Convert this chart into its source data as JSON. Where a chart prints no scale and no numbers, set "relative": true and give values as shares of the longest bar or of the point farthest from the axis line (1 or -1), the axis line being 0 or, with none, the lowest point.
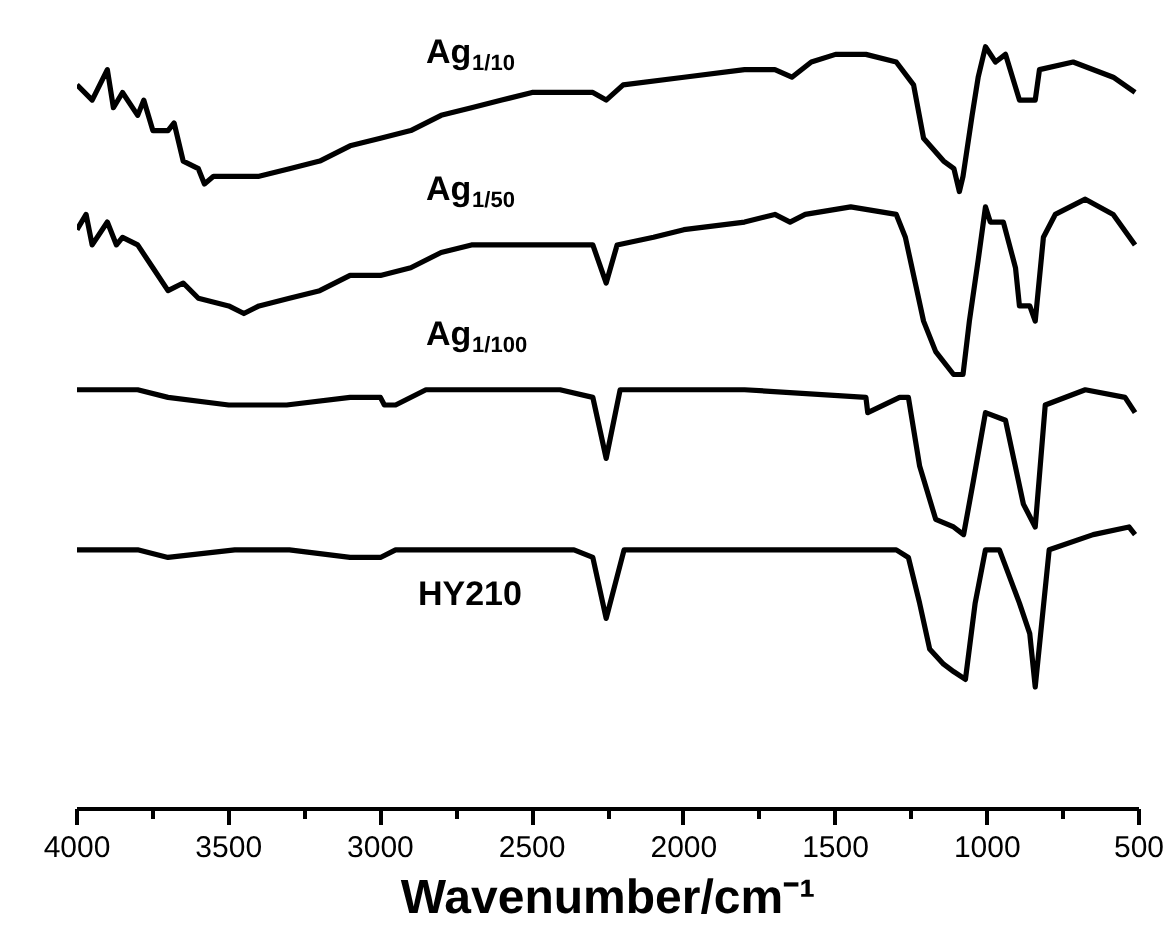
{
  "chart_data": {
    "type": "line",
    "relative": true,
    "xlabel": "Wavenumber/cm⁻¹",
    "xlim": [
      4000,
      500
    ],
    "xticks": [
      4000,
      {
        "value": 3750,
        "label": null
      },
      3500,
      {
        "value": 3250,
        "label": null
      },
      3000,
      {
        "value": 2750,
        "label": null
      },
      2500,
      {
        "value": 2250,
        "label": null
      },
      2000,
      {
        "value": 1750,
        "label": null
      },
      1500,
      {
        "value": 1250,
        "label": null
      },
      1000,
      {
        "value": 750,
        "label": null
      },
      500
    ],
    "grid": false,
    "marker": "none",
    "line_style": "solid",
    "series": [
      {
        "name": "Ag$_{1/10}$",
        "color": "#000000",
        "x": [
          4000,
          3950,
          3900,
          3880,
          3850,
          3800,
          3780,
          3750,
          3700,
          3680,
          3650,
          3600,
          3580,
          3550,
          3500,
          3450,
          3400,
          3300,
          3200,
          3100,
          3000,
          2900,
          2800,
          2700,
          2600,
          2500,
          2400,
          2300,
          2256,
          2200,
          2000,
          1800,
          1700,
          1644,
          1580,
          1500,
          1400,
          1300,
          1243,
          1210,
          1144,
          1110,
          1092,
          1080,
          1050,
          1030,
          1006,
          973,
          940,
          894,
          870,
          842,
          828,
          717,
          585,
          513
        ],
        "values": [
          0.95,
          0.93,
          0.97,
          0.92,
          0.94,
          0.91,
          0.93,
          0.89,
          0.89,
          0.9,
          0.85,
          0.84,
          0.82,
          0.83,
          0.83,
          0.83,
          0.83,
          0.84,
          0.85,
          0.87,
          0.88,
          0.89,
          0.91,
          0.92,
          0.93,
          0.94,
          0.94,
          0.94,
          0.93,
          0.95,
          0.96,
          0.97,
          0.97,
          0.96,
          0.98,
          0.99,
          0.99,
          0.98,
          0.95,
          0.88,
          0.85,
          0.84,
          0.81,
          0.83,
          0.91,
          0.96,
          1.0,
          0.98,
          0.99,
          0.93,
          0.93,
          0.93,
          0.97,
          0.98,
          0.96,
          0.94
        ]
      },
      {
        "name": "Ag$_{1/50}$",
        "color": "#000000",
        "x": [
          4000,
          3970,
          3950,
          3900,
          3870,
          3850,
          3800,
          3750,
          3700,
          3650,
          3600,
          3500,
          3450,
          3400,
          3300,
          3200,
          3100,
          3000,
          2900,
          2800,
          2700,
          2600,
          2500,
          2420,
          2300,
          2256,
          2220,
          2100,
          2000,
          1800,
          1700,
          1650,
          1600,
          1450,
          1300,
          1270,
          1210,
          1170,
          1111,
          1080,
          1059,
          1030,
          1006,
          990,
          947,
          907,
          894,
          860,
          842,
          815,
          776,
          677,
          585,
          513
        ],
        "values": [
          0.76,
          0.78,
          0.74,
          0.77,
          0.74,
          0.75,
          0.74,
          0.71,
          0.68,
          0.69,
          0.67,
          0.66,
          0.65,
          0.66,
          0.67,
          0.68,
          0.7,
          0.7,
          0.71,
          0.73,
          0.74,
          0.74,
          0.74,
          0.74,
          0.74,
          0.69,
          0.74,
          0.75,
          0.76,
          0.77,
          0.78,
          0.77,
          0.78,
          0.79,
          0.78,
          0.75,
          0.64,
          0.6,
          0.57,
          0.57,
          0.64,
          0.72,
          0.79,
          0.77,
          0.77,
          0.71,
          0.66,
          0.66,
          0.64,
          0.75,
          0.78,
          0.8,
          0.78,
          0.74
        ]
      },
      {
        "name": "Ag$_{1/100}$",
        "color": "#000000",
        "x": [
          4000,
          3900,
          3800,
          3700,
          3500,
          3309,
          3100,
          3000,
          2987,
          2950,
          2850,
          2600,
          2408,
          2300,
          2256,
          2210,
          1800,
          1400,
          1394,
          1289,
          1260,
          1223,
          1170,
          1111,
          1078,
          1046,
          1006,
          940,
          881,
          842,
          809,
          677,
          546,
          513
        ],
        "values": [
          0.55,
          0.55,
          0.55,
          0.54,
          0.53,
          0.53,
          0.54,
          0.54,
          0.53,
          0.53,
          0.55,
          0.55,
          0.55,
          0.54,
          0.46,
          0.55,
          0.55,
          0.54,
          0.52,
          0.54,
          0.54,
          0.45,
          0.38,
          0.37,
          0.36,
          0.43,
          0.52,
          0.51,
          0.4,
          0.37,
          0.53,
          0.55,
          0.54,
          0.52
        ]
      },
      {
        "name": "HY210",
        "color": "#000000",
        "x": [
          4000,
          3800,
          3700,
          3480,
          3300,
          3100,
          3000,
          2950,
          2700,
          2550,
          2362,
          2300,
          2256,
          2197,
          1800,
          1600,
          1300,
          1260,
          1223,
          1190,
          1144,
          1110,
          1072,
          1040,
          1006,
          960,
          894,
          860,
          842,
          796,
          651,
          533,
          513
        ],
        "values": [
          0.34,
          0.34,
          0.33,
          0.34,
          0.34,
          0.33,
          0.33,
          0.34,
          0.34,
          0.34,
          0.34,
          0.33,
          0.25,
          0.34,
          0.34,
          0.34,
          0.34,
          0.33,
          0.27,
          0.21,
          0.19,
          0.18,
          0.17,
          0.27,
          0.34,
          0.34,
          0.27,
          0.23,
          0.16,
          0.34,
          0.36,
          0.37,
          0.36
        ]
      }
    ]
  }
}
